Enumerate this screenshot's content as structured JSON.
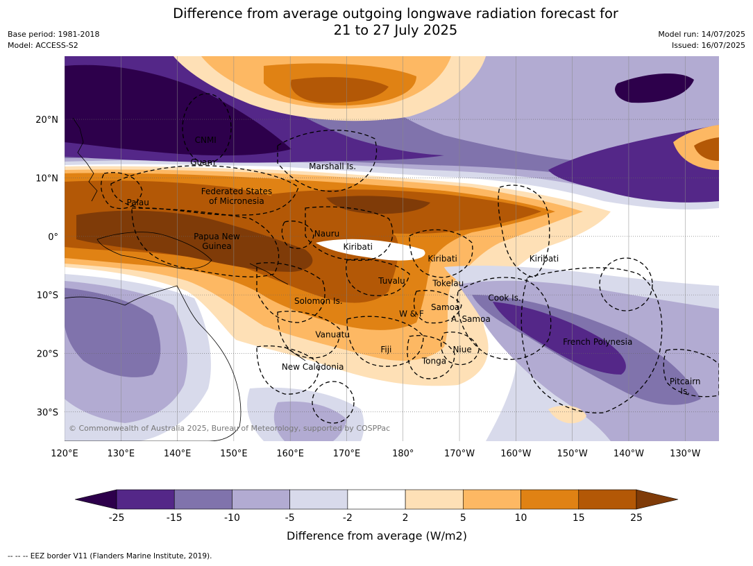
{
  "title_line1": "Difference from average outgoing longwave radiation forecast for",
  "title_line2": "21 to 27 July 2025",
  "base_period": "Base period: 1981-2018",
  "model": "Model: ACCESS-S2",
  "model_run": "Model run: 14/07/2025",
  "issued": "Issued: 16/07/2025",
  "copyright": "© Commonwealth of Australia 2025, Bureau of Meteorology, supported by COSPPac",
  "lon_labels": [
    "120°E",
    "130°E",
    "140°E",
    "150°E",
    "160°E",
    "170°E",
    "180°",
    "170°W",
    "160°W",
    "150°W",
    "140°W",
    "130°W"
  ],
  "lat_labels": [
    {
      "text": "20°N",
      "lat": 20
    },
    {
      "text": "10°N",
      "lat": 10
    },
    {
      "text": "0°",
      "lat": 0
    },
    {
      "text": "10°S",
      "lat": -10
    },
    {
      "text": "20°S",
      "lat": -20
    },
    {
      "text": "30°S",
      "lat": -30
    }
  ],
  "region_labels": [
    {
      "lines": [
        "CNMI"
      ],
      "lon": 145,
      "lat": 16
    },
    {
      "lines": [
        "Guam"
      ],
      "lon": 144.5,
      "lat": 12.2
    },
    {
      "lines": [
        "Marshall Is."
      ],
      "lon": 167.5,
      "lat": 11.5
    },
    {
      "lines": [
        "Federated States",
        "of Micronesia"
      ],
      "lon": 150.5,
      "lat": 7.2
    },
    {
      "lines": [
        "Palau"
      ],
      "lon": 133,
      "lat": 5.3
    },
    {
      "lines": [
        "Papua New",
        "Guinea"
      ],
      "lon": 147,
      "lat": -0.5
    },
    {
      "lines": [
        "Nauru"
      ],
      "lon": 166.5,
      "lat": 0
    },
    {
      "lines": [
        "Kiribati"
      ],
      "lon": 172,
      "lat": -2.3
    },
    {
      "lines": [
        "Kiribati"
      ],
      "lon": 187,
      "lat": -4.3
    },
    {
      "lines": [
        "Kiribati"
      ],
      "lon": 205,
      "lat": -4.3
    },
    {
      "lines": [
        "Tuvalu"
      ],
      "lon": 178,
      "lat": -8.1
    },
    {
      "lines": [
        "Tokelau"
      ],
      "lon": 188,
      "lat": -8.5
    },
    {
      "lines": [
        "Cook Is."
      ],
      "lon": 198,
      "lat": -11
    },
    {
      "lines": [
        "Solomon Is."
      ],
      "lon": 165,
      "lat": -11.5
    },
    {
      "lines": [
        "Samoa"
      ],
      "lon": 187.5,
      "lat": -12.6
    },
    {
      "lines": [
        "W & F"
      ],
      "lon": 181.5,
      "lat": -13.7
    },
    {
      "lines": [
        "A. Samoa"
      ],
      "lon": 192,
      "lat": -14.6
    },
    {
      "lines": [
        "Vanuatu"
      ],
      "lon": 167.5,
      "lat": -17.3
    },
    {
      "lines": [
        "French Polynesia"
      ],
      "lon": 214.5,
      "lat": -18.5
    },
    {
      "lines": [
        "Niue"
      ],
      "lon": 190.5,
      "lat": -19.8
    },
    {
      "lines": [
        "Fiji"
      ],
      "lon": 177,
      "lat": -19.8
    },
    {
      "lines": [
        "Tonga"
      ],
      "lon": 185.5,
      "lat": -21.8
    },
    {
      "lines": [
        "New Caledonia"
      ],
      "lon": 164,
      "lat": -22.8
    },
    {
      "lines": [
        "Pitcairn",
        "Is."
      ],
      "lon": 230,
      "lat": -25.3
    }
  ],
  "legend": {
    "label": "Difference from average (W/m2)",
    "ticks": [
      "-25",
      "-15",
      "-10",
      "-5",
      "-2",
      "2",
      "5",
      "10",
      "15",
      "25"
    ],
    "colors": [
      "#2d004b",
      "#542788",
      "#8073ac",
      "#b2abd2",
      "#d8daeb",
      "#ffffff",
      "#fee0b6",
      "#fdb863",
      "#e08214",
      "#b35806",
      "#7f3b08"
    ]
  },
  "footnote": "--  --  -- EEZ border V11 (Flanders Marine Institute, 2019)."
}
